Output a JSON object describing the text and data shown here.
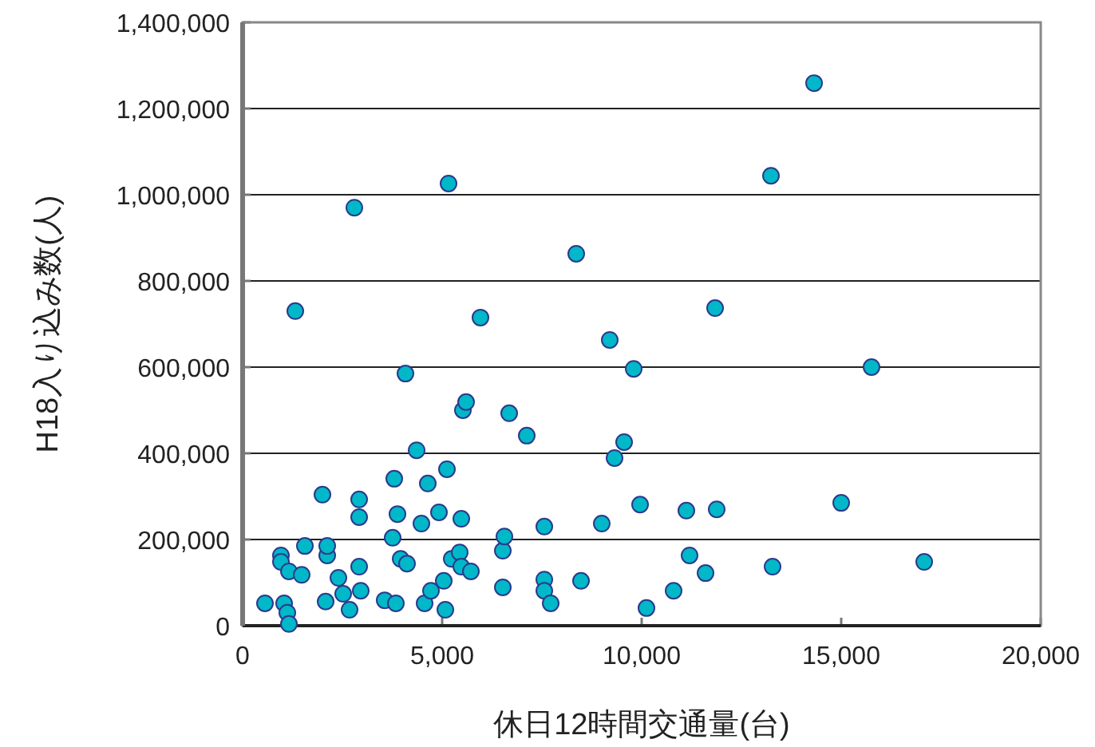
{
  "chart_data": {
    "type": "scatter",
    "xlabel": "休日12時間交通量(台)",
    "ylabel": "H18入り込み数(人)",
    "x": [
      560,
      960,
      960,
      1040,
      1120,
      1160,
      1320,
      1160,
      1560,
      1480,
      2000,
      2080,
      2120,
      2120,
      2400,
      2520,
      2680,
      2800,
      2920,
      2920,
      2920,
      2960,
      3560,
      3760,
      3840,
      3800,
      3880,
      3960,
      4120,
      4080,
      4360,
      4480,
      4560,
      4640,
      4720,
      4920,
      5040,
      5080,
      5120,
      5160,
      5240,
      5440,
      5480,
      5520,
      5600,
      5480,
      5720,
      5960,
      6520,
      6560,
      6520,
      6680,
      7120,
      7560,
      7560,
      7560,
      7720,
      8360,
      8480,
      9000,
      9200,
      9320,
      9560,
      9800,
      9960,
      10120,
      10800,
      11120,
      11200,
      11600,
      11880,
      11840,
      13240,
      13280,
      14320,
      15000,
      15760,
      17080
    ],
    "values": [
      52000,
      163000,
      148000,
      52000,
      30000,
      4000,
      730000,
      126000,
      185000,
      118000,
      304000,
      56000,
      163000,
      185000,
      111000,
      74000,
      37000,
      970000,
      293000,
      252000,
      137000,
      81000,
      59000,
      204000,
      52000,
      341000,
      259000,
      155000,
      144000,
      585000,
      407000,
      237000,
      52000,
      330000,
      81000,
      263000,
      104000,
      37000,
      363000,
      1026000,
      155000,
      170000,
      248000,
      500000,
      519000,
      137000,
      126000,
      715000,
      174000,
      207000,
      89000,
      493000,
      441000,
      230000,
      107000,
      81000,
      52000,
      863000,
      104000,
      237000,
      663000,
      389000,
      426000,
      596000,
      281000,
      41000,
      81000,
      267000,
      163000,
      122000,
      270000,
      737000,
      1044000,
      137000,
      1259000,
      285000,
      600000,
      148000
    ],
    "color": "#00b8c8",
    "marker": "circle",
    "xlim": [
      0,
      20000
    ],
    "ylim": [
      0,
      1400000
    ],
    "xticks": [
      0,
      {
        "value": 5000,
        "label": "5,000"
      },
      {
        "value": 10000,
        "label": "10,000"
      },
      {
        "value": 15000,
        "label": "15,000"
      },
      {
        "value": 20000,
        "label": "20,000"
      }
    ],
    "yticks": [
      0,
      {
        "value": 200000,
        "label": "200,000"
      },
      {
        "value": 400000,
        "label": "400,000"
      },
      {
        "value": 600000,
        "label": "600,000"
      },
      {
        "value": 800000,
        "label": "800,000"
      },
      {
        "value": 1000000,
        "label": "1,000,000"
      },
      {
        "value": 1200000,
        "label": "1,200,000"
      },
      {
        "value": 1400000,
        "label": "1,400,000"
      }
    ],
    "grid": "y"
  }
}
